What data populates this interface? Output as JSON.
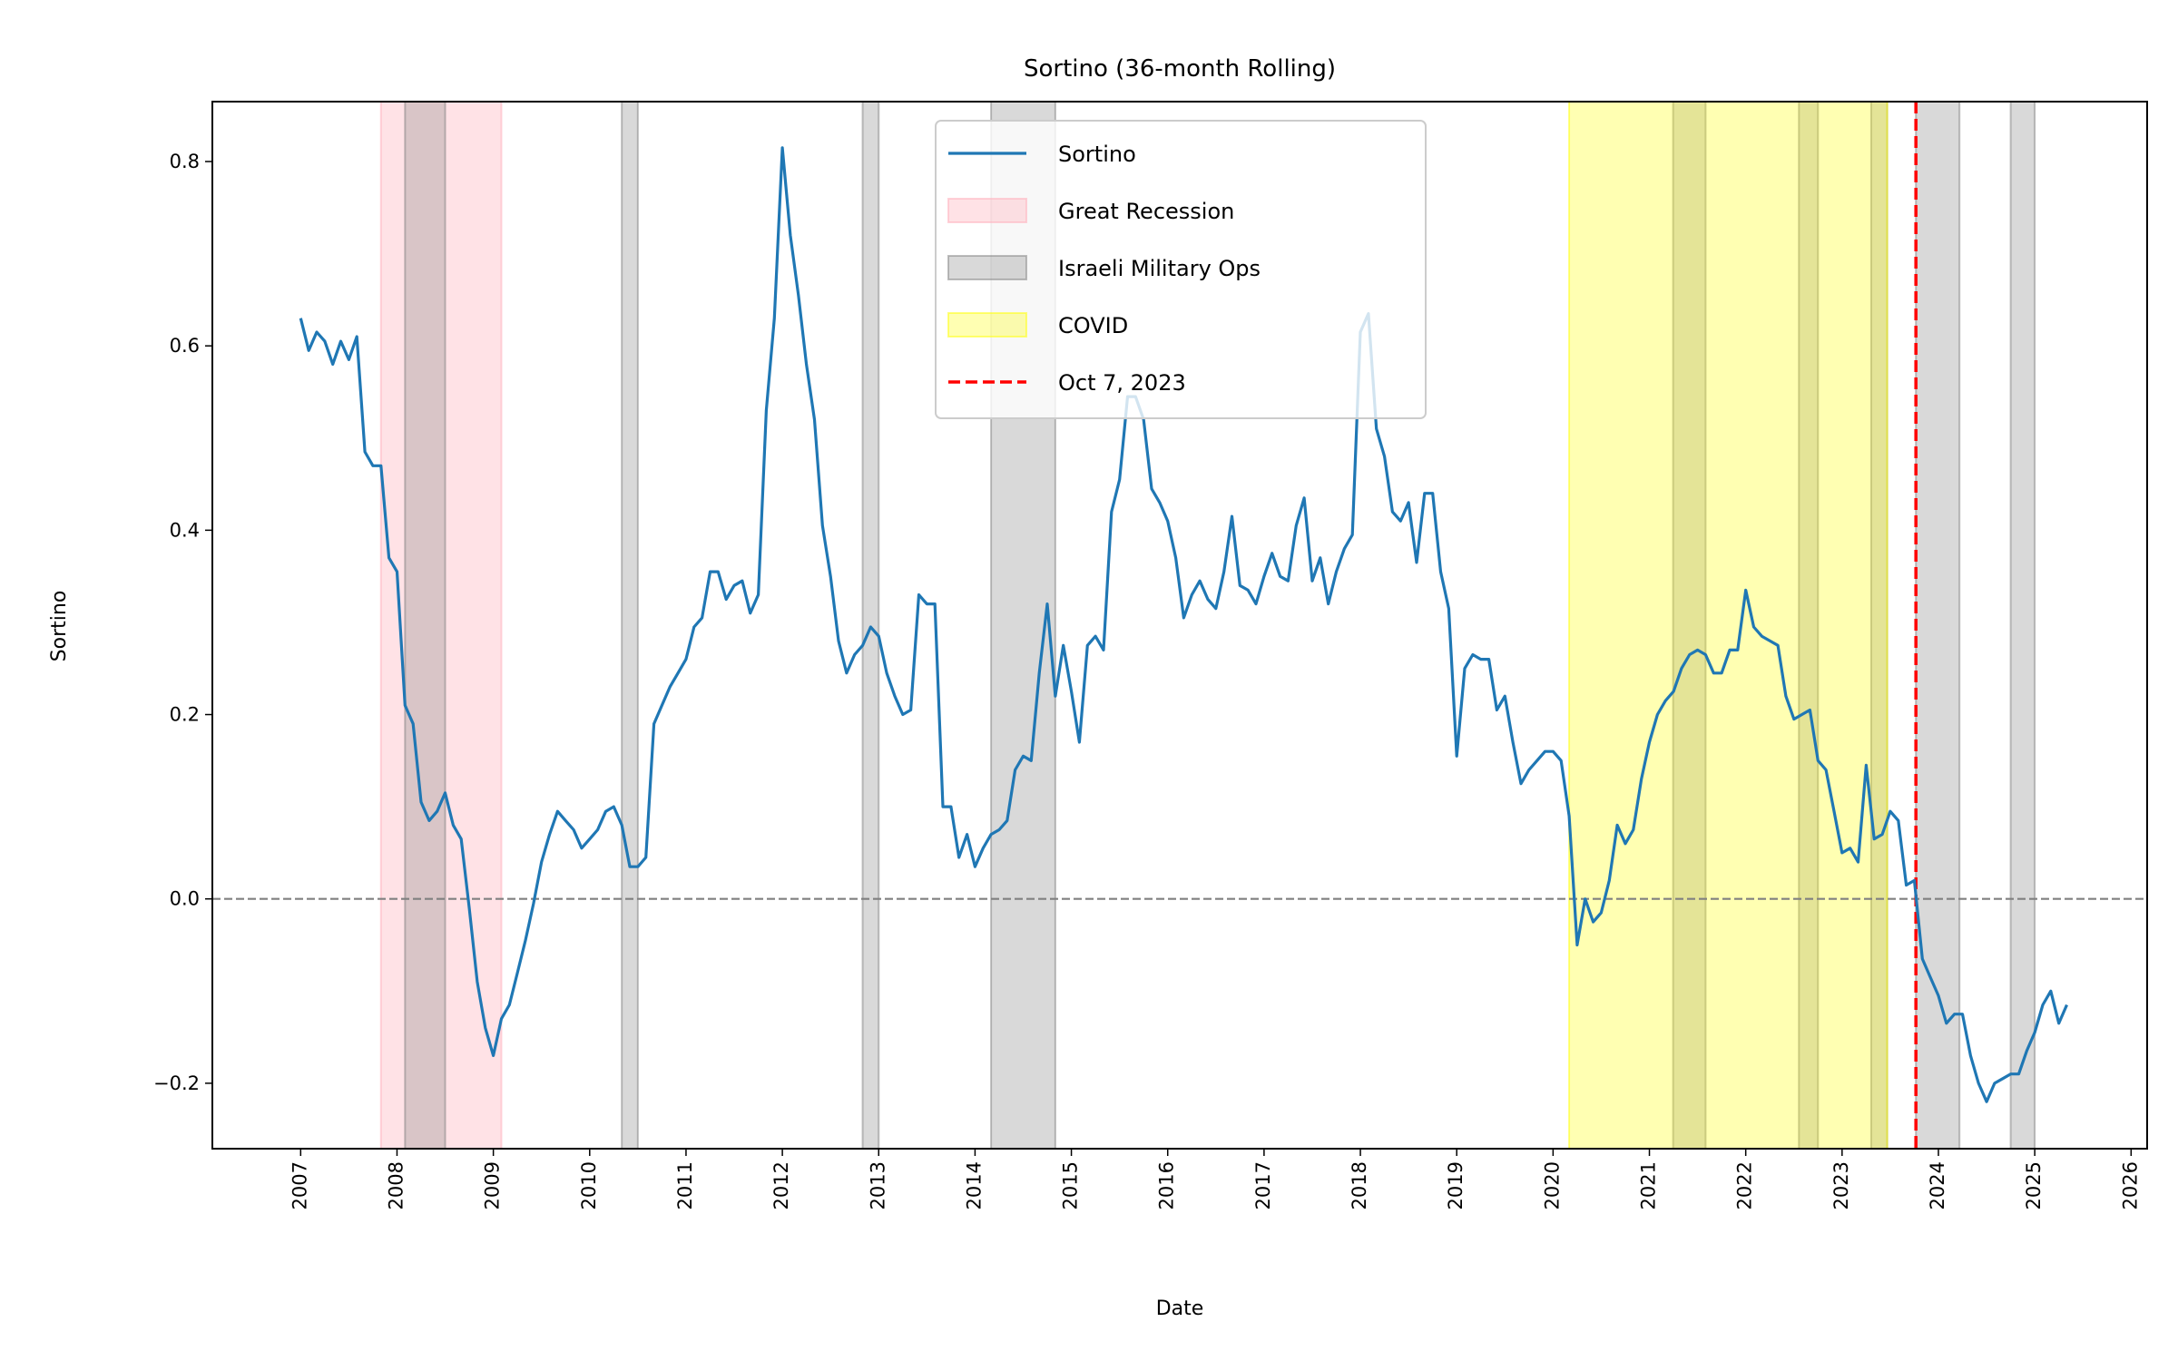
{
  "chart_data": {
    "type": "line",
    "title": "Sortino (36-month Rolling)",
    "xlabel": "Date",
    "ylabel": "Sortino",
    "xlim": [
      "2006-02",
      "2026-03"
    ],
    "ylim": [
      -0.271,
      0.865
    ],
    "grid": false,
    "legend_placement": "top-center",
    "x_ticks": [
      "2007",
      "2008",
      "2009",
      "2010",
      "2011",
      "2012",
      "2013",
      "2014",
      "2015",
      "2016",
      "2017",
      "2018",
      "2019",
      "2020",
      "2021",
      "2022",
      "2023",
      "2024",
      "2025",
      "2026"
    ],
    "y_ticks": [
      -0.2,
      0.0,
      0.2,
      0.4,
      0.6,
      0.8
    ],
    "y_tick_labels": [
      "−0.2",
      "0.0",
      "0.2",
      "0.4",
      "0.6",
      "0.8"
    ],
    "zero_line": {
      "y": 0,
      "color": "#808080",
      "style": "dashed"
    },
    "series": [
      {
        "name": "Sortino",
        "color": "#1f77b4",
        "points": [
          [
            "2007-01",
            0.63
          ],
          [
            "2007-02",
            0.595
          ],
          [
            "2007-03",
            0.615
          ],
          [
            "2007-04",
            0.605
          ],
          [
            "2007-05",
            0.58
          ],
          [
            "2007-06",
            0.605
          ],
          [
            "2007-07",
            0.585
          ],
          [
            "2007-08",
            0.61
          ],
          [
            "2007-09",
            0.485
          ],
          [
            "2007-10",
            0.47
          ],
          [
            "2007-11",
            0.47
          ],
          [
            "2007-12",
            0.37
          ],
          [
            "2008-01",
            0.355
          ],
          [
            "2008-02",
            0.21
          ],
          [
            "2008-03",
            0.19
          ],
          [
            "2008-04",
            0.105
          ],
          [
            "2008-05",
            0.085
          ],
          [
            "2008-06",
            0.095
          ],
          [
            "2008-07",
            0.115
          ],
          [
            "2008-08",
            0.08
          ],
          [
            "2008-09",
            0.065
          ],
          [
            "2008-10",
            -0.01
          ],
          [
            "2008-11",
            -0.09
          ],
          [
            "2008-12",
            -0.14
          ],
          [
            "2009-01",
            -0.17
          ],
          [
            "2009-02",
            -0.13
          ],
          [
            "2009-03",
            -0.115
          ],
          [
            "2009-04",
            -0.08
          ],
          [
            "2009-05",
            -0.045
          ],
          [
            "2009-06",
            -0.005
          ],
          [
            "2009-07",
            0.04
          ],
          [
            "2009-08",
            0.07
          ],
          [
            "2009-09",
            0.095
          ],
          [
            "2009-10",
            0.085
          ],
          [
            "2009-11",
            0.075
          ],
          [
            "2009-12",
            0.055
          ],
          [
            "2010-01",
            0.065
          ],
          [
            "2010-02",
            0.075
          ],
          [
            "2010-03",
            0.095
          ],
          [
            "2010-04",
            0.1
          ],
          [
            "2010-05",
            0.08
          ],
          [
            "2010-06",
            0.035
          ],
          [
            "2010-07",
            0.035
          ],
          [
            "2010-08",
            0.045
          ],
          [
            "2010-09",
            0.19
          ],
          [
            "2010-10",
            0.21
          ],
          [
            "2010-11",
            0.23
          ],
          [
            "2010-12",
            0.245
          ],
          [
            "2011-01",
            0.26
          ],
          [
            "2011-02",
            0.295
          ],
          [
            "2011-03",
            0.305
          ],
          [
            "2011-04",
            0.355
          ],
          [
            "2011-05",
            0.355
          ],
          [
            "2011-06",
            0.325
          ],
          [
            "2011-07",
            0.34
          ],
          [
            "2011-08",
            0.345
          ],
          [
            "2011-09",
            0.31
          ],
          [
            "2011-10",
            0.33
          ],
          [
            "2011-11",
            0.53
          ],
          [
            "2011-12",
            0.63
          ],
          [
            "2012-01",
            0.815
          ],
          [
            "2012-02",
            0.72
          ],
          [
            "2012-03",
            0.655
          ],
          [
            "2012-04",
            0.58
          ],
          [
            "2012-05",
            0.52
          ],
          [
            "2012-06",
            0.405
          ],
          [
            "2012-07",
            0.35
          ],
          [
            "2012-08",
            0.28
          ],
          [
            "2012-09",
            0.245
          ],
          [
            "2012-10",
            0.265
          ],
          [
            "2012-11",
            0.275
          ],
          [
            "2012-12",
            0.295
          ],
          [
            "2013-01",
            0.285
          ],
          [
            "2013-02",
            0.245
          ],
          [
            "2013-03",
            0.22
          ],
          [
            "2013-04",
            0.2
          ],
          [
            "2013-05",
            0.205
          ],
          [
            "2013-06",
            0.33
          ],
          [
            "2013-07",
            0.32
          ],
          [
            "2013-08",
            0.32
          ],
          [
            "2013-09",
            0.1
          ],
          [
            "2013-10",
            0.1
          ],
          [
            "2013-11",
            0.045
          ],
          [
            "2013-12",
            0.07
          ],
          [
            "2014-01",
            0.035
          ],
          [
            "2014-02",
            0.055
          ],
          [
            "2014-03",
            0.07
          ],
          [
            "2014-04",
            0.075
          ],
          [
            "2014-05",
            0.085
          ],
          [
            "2014-06",
            0.14
          ],
          [
            "2014-07",
            0.155
          ],
          [
            "2014-08",
            0.15
          ],
          [
            "2014-09",
            0.245
          ],
          [
            "2014-10",
            0.32
          ],
          [
            "2014-11",
            0.22
          ],
          [
            "2014-12",
            0.275
          ],
          [
            "2015-01",
            0.225
          ],
          [
            "2015-02",
            0.17
          ],
          [
            "2015-03",
            0.275
          ],
          [
            "2015-04",
            0.285
          ],
          [
            "2015-05",
            0.27
          ],
          [
            "2015-06",
            0.42
          ],
          [
            "2015-07",
            0.455
          ],
          [
            "2015-08",
            0.545
          ],
          [
            "2015-09",
            0.545
          ],
          [
            "2015-10",
            0.52
          ],
          [
            "2015-11",
            0.445
          ],
          [
            "2015-12",
            0.43
          ],
          [
            "2016-01",
            0.41
          ],
          [
            "2016-02",
            0.37
          ],
          [
            "2016-03",
            0.305
          ],
          [
            "2016-04",
            0.33
          ],
          [
            "2016-05",
            0.345
          ],
          [
            "2016-06",
            0.325
          ],
          [
            "2016-07",
            0.315
          ],
          [
            "2016-08",
            0.355
          ],
          [
            "2016-09",
            0.415
          ],
          [
            "2016-10",
            0.34
          ],
          [
            "2016-11",
            0.335
          ],
          [
            "2016-12",
            0.32
          ],
          [
            "2017-01",
            0.35
          ],
          [
            "2017-02",
            0.375
          ],
          [
            "2017-03",
            0.35
          ],
          [
            "2017-04",
            0.345
          ],
          [
            "2017-05",
            0.405
          ],
          [
            "2017-06",
            0.435
          ],
          [
            "2017-07",
            0.345
          ],
          [
            "2017-08",
            0.37
          ],
          [
            "2017-09",
            0.32
          ],
          [
            "2017-10",
            0.355
          ],
          [
            "2017-11",
            0.38
          ],
          [
            "2017-12",
            0.395
          ],
          [
            "2018-01",
            0.615
          ],
          [
            "2018-02",
            0.635
          ],
          [
            "2018-03",
            0.51
          ],
          [
            "2018-04",
            0.48
          ],
          [
            "2018-05",
            0.42
          ],
          [
            "2018-06",
            0.41
          ],
          [
            "2018-07",
            0.43
          ],
          [
            "2018-08",
            0.365
          ],
          [
            "2018-09",
            0.44
          ],
          [
            "2018-10",
            0.44
          ],
          [
            "2018-11",
            0.355
          ],
          [
            "2018-12",
            0.315
          ],
          [
            "2019-01",
            0.155
          ],
          [
            "2019-02",
            0.25
          ],
          [
            "2019-03",
            0.265
          ],
          [
            "2019-04",
            0.26
          ],
          [
            "2019-05",
            0.26
          ],
          [
            "2019-06",
            0.205
          ],
          [
            "2019-07",
            0.22
          ],
          [
            "2019-08",
            0.17
          ],
          [
            "2019-09",
            0.125
          ],
          [
            "2019-10",
            0.14
          ],
          [
            "2019-11",
            0.15
          ],
          [
            "2019-12",
            0.16
          ],
          [
            "2020-01",
            0.16
          ],
          [
            "2020-02",
            0.15
          ],
          [
            "2020-03",
            0.09
          ],
          [
            "2020-04",
            -0.05
          ],
          [
            "2020-05",
            0.0
          ],
          [
            "2020-06",
            -0.025
          ],
          [
            "2020-07",
            -0.015
          ],
          [
            "2020-08",
            0.02
          ],
          [
            "2020-09",
            0.08
          ],
          [
            "2020-10",
            0.06
          ],
          [
            "2020-11",
            0.075
          ],
          [
            "2020-12",
            0.13
          ],
          [
            "2021-01",
            0.17
          ],
          [
            "2021-02",
            0.2
          ],
          [
            "2021-03",
            0.215
          ],
          [
            "2021-04",
            0.225
          ],
          [
            "2021-05",
            0.25
          ],
          [
            "2021-06",
            0.265
          ],
          [
            "2021-07",
            0.27
          ],
          [
            "2021-08",
            0.265
          ],
          [
            "2021-09",
            0.245
          ],
          [
            "2021-10",
            0.245
          ],
          [
            "2021-11",
            0.27
          ],
          [
            "2021-12",
            0.27
          ],
          [
            "2022-01",
            0.335
          ],
          [
            "2022-02",
            0.295
          ],
          [
            "2022-03",
            0.285
          ],
          [
            "2022-04",
            0.28
          ],
          [
            "2022-05",
            0.275
          ],
          [
            "2022-06",
            0.22
          ],
          [
            "2022-07",
            0.195
          ],
          [
            "2022-08",
            0.2
          ],
          [
            "2022-09",
            0.205
          ],
          [
            "2022-10",
            0.15
          ],
          [
            "2022-11",
            0.14
          ],
          [
            "2022-12",
            0.095
          ],
          [
            "2023-01",
            0.05
          ],
          [
            "2023-02",
            0.055
          ],
          [
            "2023-03",
            0.04
          ],
          [
            "2023-04",
            0.145
          ],
          [
            "2023-05",
            0.065
          ],
          [
            "2023-06",
            0.07
          ],
          [
            "2023-07",
            0.095
          ],
          [
            "2023-08",
            0.085
          ],
          [
            "2023-09",
            0.015
          ],
          [
            "2023-10",
            0.02
          ],
          [
            "2023-11",
            -0.065
          ],
          [
            "2023-12",
            -0.085
          ],
          [
            "2024-01",
            -0.105
          ],
          [
            "2024-02",
            -0.135
          ],
          [
            "2024-03",
            -0.125
          ],
          [
            "2024-04",
            -0.125
          ],
          [
            "2024-05",
            -0.17
          ],
          [
            "2024-06",
            -0.2
          ],
          [
            "2024-07",
            -0.22
          ],
          [
            "2024-08",
            -0.2
          ],
          [
            "2024-09",
            -0.195
          ],
          [
            "2024-10",
            -0.19
          ],
          [
            "2024-11",
            -0.19
          ],
          [
            "2024-12",
            -0.165
          ],
          [
            "2025-01",
            -0.145
          ],
          [
            "2025-02",
            -0.115
          ],
          [
            "2025-03",
            -0.1
          ],
          [
            "2025-04",
            -0.135
          ],
          [
            "2025-05",
            -0.115
          ]
        ]
      }
    ],
    "shaded_regions": [
      {
        "name": "Great Recession",
        "color": "#ffb6c1",
        "opacity": 0.4,
        "spans": [
          [
            "2007-11-01",
            "2009-02-01"
          ]
        ]
      },
      {
        "name": "Israeli Military Ops",
        "color": "#808080",
        "opacity": 0.3,
        "spans": [
          [
            "2008-02-01",
            "2008-07-01"
          ],
          [
            "2010-05-01",
            "2010-07-01"
          ],
          [
            "2012-11-01",
            "2013-01-01"
          ],
          [
            "2014-03-01",
            "2014-11-01"
          ],
          [
            "2021-03-30",
            "2021-08-01"
          ],
          [
            "2022-07-20",
            "2022-10-01"
          ],
          [
            "2023-04-20",
            "2023-06-20"
          ],
          [
            "2023-10-07",
            "2024-03-20"
          ],
          [
            "2024-10-01",
            "2025-01-01"
          ]
        ]
      },
      {
        "name": "COVID",
        "color": "#ffff00",
        "opacity": 0.3,
        "spans": [
          [
            "2020-03-01",
            "2023-06-20"
          ]
        ]
      }
    ],
    "vlines": [
      {
        "name": "Oct 7, 2023",
        "date": "2023-10-07",
        "color": "#ff0000",
        "style": "dashed"
      }
    ],
    "legend": [
      "Sortino",
      "Great Recession",
      "Israeli Military Ops",
      "COVID",
      "Oct 7, 2023"
    ]
  }
}
